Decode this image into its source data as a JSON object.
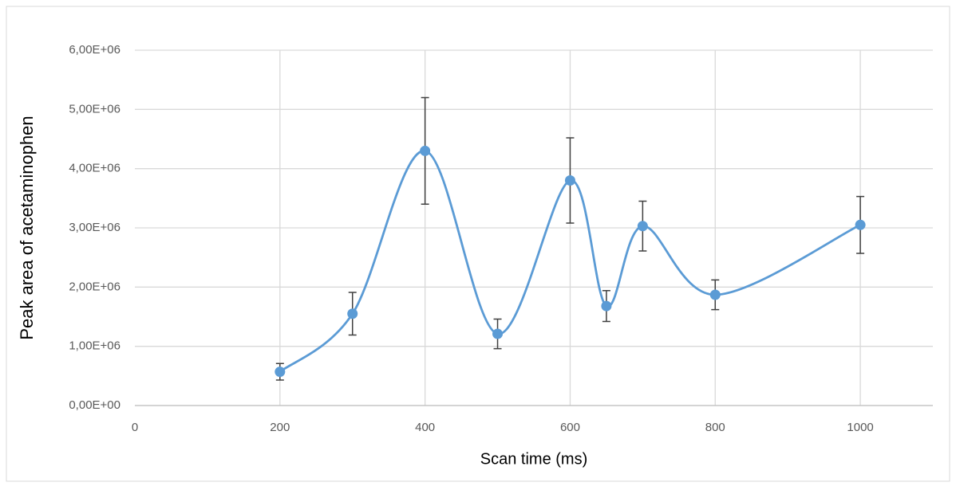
{
  "chart_data": {
    "type": "scatter",
    "x_label": "Scan time (ms)",
    "y_label": "Peak area of acetaminophen",
    "x": [
      200,
      300,
      400,
      500,
      600,
      650,
      700,
      800,
      1000
    ],
    "values": [
      570000,
      1550000,
      4300000,
      1210000,
      3800000,
      1680000,
      3030000,
      1870000,
      3050000
    ],
    "errors": [
      140000,
      360000,
      900000,
      250000,
      720000,
      260000,
      420000,
      250000,
      480000
    ],
    "color": "#5b9bd5",
    "smooth": true,
    "grid": true,
    "xlim": [
      0,
      1100
    ],
    "xticks": [
      0,
      200,
      400,
      600,
      800,
      1000
    ],
    "ylim": [
      0,
      6000000
    ],
    "yticks": [
      {
        "value": 0,
        "label": "0,00E+00"
      },
      {
        "value": 1000000,
        "label": "1,00E+06"
      },
      {
        "value": 2000000,
        "label": "2,00E+06"
      },
      {
        "value": 3000000,
        "label": "3,00E+06"
      },
      {
        "value": 4000000,
        "label": "4,00E+06"
      },
      {
        "value": 5000000,
        "label": "5,00E+06"
      },
      {
        "value": 6000000,
        "label": "6,00E+06"
      }
    ]
  }
}
